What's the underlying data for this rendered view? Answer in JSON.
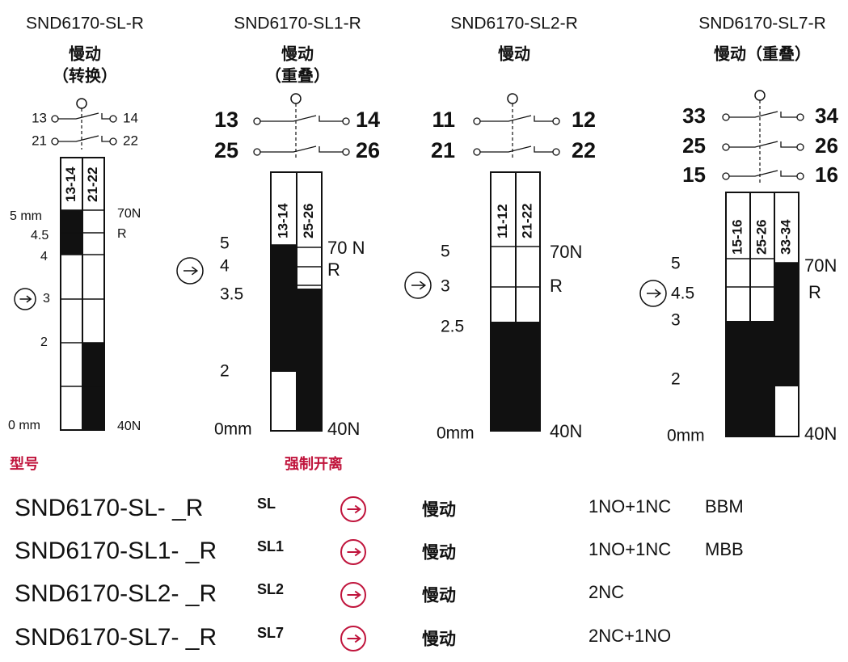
{
  "diagrams": [
    {
      "title": "SND6170-SL-R",
      "subtitle": [
        "慢动",
        "（转换）"
      ],
      "contacts": [
        [
          "13",
          "14"
        ],
        [
          "21",
          "22"
        ]
      ],
      "columns": [
        "13-14",
        "21-22"
      ],
      "scale": [
        "5 mm",
        "4.5",
        "4",
        "3",
        "2",
        "0 mm"
      ],
      "force": [
        "70N",
        "R",
        "40N"
      ]
    },
    {
      "title": "SND6170-SL1-R",
      "subtitle": [
        "慢动",
        "（重叠）"
      ],
      "contacts": [
        [
          "13",
          "14"
        ],
        [
          "25",
          "26"
        ]
      ],
      "columns": [
        "13-14",
        "25-26"
      ],
      "scale": [
        "5",
        "4",
        "3.5",
        "2",
        "0mm"
      ],
      "force": [
        "70 N",
        "R",
        "40N"
      ]
    },
    {
      "title": "SND6170-SL2-R",
      "subtitle": [
        "慢动"
      ],
      "contacts": [
        [
          "11",
          "12"
        ],
        [
          "21",
          "22"
        ]
      ],
      "columns": [
        "11-12",
        "21-22"
      ],
      "scale": [
        "5",
        "3",
        "2.5",
        "0mm"
      ],
      "force": [
        "70N",
        "R",
        "40N"
      ]
    },
    {
      "title": "SND6170-SL7-R",
      "subtitle": [
        "慢动（重叠）"
      ],
      "contacts": [
        [
          "33",
          "34"
        ],
        [
          "25",
          "26"
        ],
        [
          "15",
          "16"
        ]
      ],
      "columns": [
        "15-16",
        "25-26",
        "33-34"
      ],
      "scale": [
        "5",
        "4.5",
        "3",
        "2",
        "0mm"
      ],
      "force": [
        "70N",
        "R",
        "40N"
      ]
    }
  ],
  "labels": {
    "model": "型号",
    "forced": "强制开离"
  },
  "rows": [
    {
      "model": "SND6170-SL- _R",
      "code": "SL",
      "action": "慢动",
      "contacts": "1NO+1NC",
      "mode": "BBM"
    },
    {
      "model": "SND6170-SL1- _R",
      "code": "SL1",
      "action": "慢动",
      "contacts": "1NO+1NC",
      "mode": "MBB"
    },
    {
      "model": "SND6170-SL2- _R",
      "code": "SL2",
      "action": "慢动",
      "contacts": "2NC"
    },
    {
      "model": "SND6170-SL7- _R",
      "code": "SL7",
      "action": "慢动",
      "contacts": "2NC+1NO"
    }
  ]
}
